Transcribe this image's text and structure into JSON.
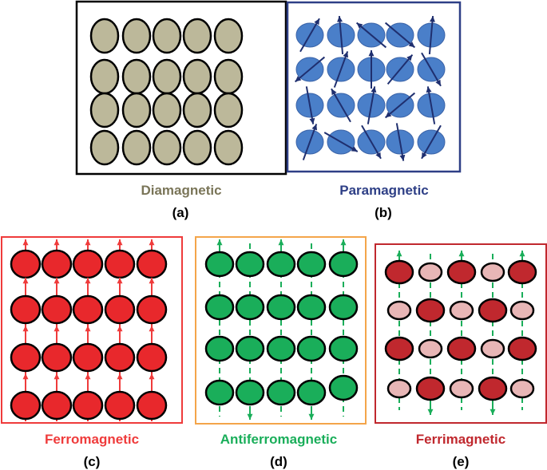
{
  "panels": [
    {
      "id": "a",
      "name": "Diamagnetic",
      "tag": "(a)",
      "color": "#7a7558",
      "frame": "#000000",
      "fill": "#bcb89a",
      "arrow": "none"
    },
    {
      "id": "b",
      "name": "Paramagnetic",
      "tag": "(b)",
      "color": "#2e3f86",
      "frame": "#2e3f86",
      "fill": "#4a7fc9",
      "arrow": "#1f2f6f"
    },
    {
      "id": "c",
      "name": "Ferromagnetic",
      "tag": "(c)",
      "color": "#ef3b3b",
      "frame": "#ef3b3b",
      "fill": "#e8282c",
      "arrow": "#ef3b3b"
    },
    {
      "id": "d",
      "name": "Antiferromagnetic",
      "tag": "(d)",
      "color": "#1aae5a",
      "frame": "#f4a54a",
      "fill": "#1aae5a",
      "arrow": "#1aae5a"
    },
    {
      "id": "e",
      "name": "Ferrimagnetic",
      "tag": "(e)",
      "color": "#c0282e",
      "frame": "#c0282e",
      "fill": "#c0282e",
      "fill_alt": "#e8b6b6",
      "arrow": "#1aae5a"
    }
  ]
}
